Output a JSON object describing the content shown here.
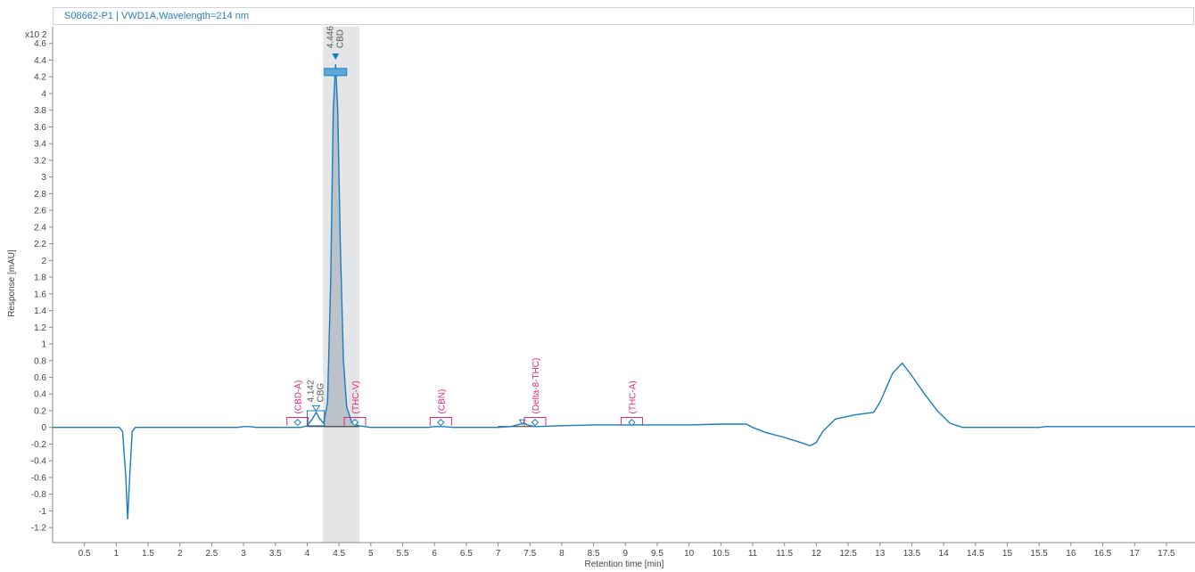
{
  "header": {
    "title": "S08662-P1 | VWD1A,Wavelength=214 nm"
  },
  "chart_data": {
    "type": "line",
    "title": "S08662-P1 | VWD1A,Wavelength=214 nm",
    "xlabel": "Retention time [min]",
    "ylabel": "Response [mAU]",
    "y_multiplier": "x10 2",
    "xlim": [
      0.0,
      17.95
    ],
    "ylim": [
      -1.38,
      4.8
    ],
    "x_ticks": [
      "0.5",
      "1",
      "1.5",
      "2",
      "2.5",
      "3",
      "3.5",
      "4",
      "4.5",
      "5",
      "5.5",
      "6",
      "6.5",
      "7",
      "7.5",
      "8",
      "8.5",
      "9",
      "9.5",
      "10",
      "10.5",
      "11",
      "11.5",
      "12",
      "12.5",
      "13",
      "13.5",
      "14",
      "14.5",
      "15",
      "15.5",
      "16",
      "16.5",
      "17",
      "17.5"
    ],
    "y_ticks": [
      "-1.2",
      "-1",
      "-0.8",
      "-0.6",
      "-0.4",
      "-0.2",
      "0",
      "0.2",
      "0.4",
      "0.6",
      "0.8",
      "1",
      "1.2",
      "1.4",
      "1.6",
      "1.8",
      "2",
      "2.2",
      "2.4",
      "2.6",
      "2.8",
      "3",
      "3.2",
      "3.4",
      "3.6",
      "3.8",
      "4",
      "4.2",
      "4.4",
      "4.6"
    ],
    "series": [
      {
        "color": "#1a7cc0",
        "points": [
          [
            0,
            0
          ],
          [
            1.05,
            0
          ],
          [
            1.1,
            -0.05
          ],
          [
            1.15,
            -0.6
          ],
          [
            1.18,
            -1.1
          ],
          [
            1.21,
            -0.6
          ],
          [
            1.25,
            -0.05
          ],
          [
            1.3,
            0
          ],
          [
            2.9,
            0
          ],
          [
            3.0,
            0.01
          ],
          [
            3.1,
            0.01
          ],
          [
            3.2,
            0
          ],
          [
            3.9,
            0
          ],
          [
            4.0,
            0.02
          ],
          [
            4.08,
            0.1
          ],
          [
            4.14,
            0.18
          ],
          [
            4.2,
            0.1
          ],
          [
            4.26,
            0.05
          ],
          [
            4.32,
            0.3
          ],
          [
            4.37,
            1.8
          ],
          [
            4.41,
            3.8
          ],
          [
            4.446,
            4.35
          ],
          [
            4.48,
            3.8
          ],
          [
            4.52,
            2.2
          ],
          [
            4.57,
            0.8
          ],
          [
            4.62,
            0.25
          ],
          [
            4.7,
            0.06
          ],
          [
            4.8,
            0.02
          ],
          [
            5.0,
            0
          ],
          [
            5.9,
            0
          ],
          [
            6.0,
            0.01
          ],
          [
            6.15,
            0.01
          ],
          [
            6.3,
            0
          ],
          [
            7.0,
            0
          ],
          [
            7.2,
            0.01
          ],
          [
            7.3,
            0.03
          ],
          [
            7.4,
            0.05
          ],
          [
            7.5,
            0.02
          ],
          [
            7.6,
            0.01
          ],
          [
            8.0,
            0.02
          ],
          [
            8.5,
            0.03
          ],
          [
            9.0,
            0.03
          ],
          [
            10.0,
            0.03
          ],
          [
            10.5,
            0.04
          ],
          [
            10.9,
            0.04
          ],
          [
            11.0,
            0.0
          ],
          [
            11.2,
            -0.06
          ],
          [
            11.5,
            -0.12
          ],
          [
            11.75,
            -0.18
          ],
          [
            11.9,
            -0.22
          ],
          [
            12.0,
            -0.18
          ],
          [
            12.1,
            -0.05
          ],
          [
            12.3,
            0.1
          ],
          [
            12.6,
            0.15
          ],
          [
            12.9,
            0.18
          ],
          [
            13.0,
            0.3
          ],
          [
            13.2,
            0.65
          ],
          [
            13.35,
            0.77
          ],
          [
            13.5,
            0.62
          ],
          [
            13.7,
            0.4
          ],
          [
            13.9,
            0.2
          ],
          [
            14.1,
            0.05
          ],
          [
            14.3,
            0.0
          ],
          [
            15.5,
            0.0
          ],
          [
            15.6,
            0.01
          ],
          [
            16.5,
            0.01
          ],
          [
            17.95,
            0.01
          ]
        ]
      }
    ],
    "peaks": [
      {
        "rt": "4.446",
        "name": "CBD",
        "x": 4.446,
        "y": 4.35
      },
      {
        "rt": "4.142",
        "name": "CBG",
        "x": 4.14,
        "y": 0.18
      }
    ],
    "expected_compounds": [
      {
        "name": "(CBD-A)",
        "x": 3.85
      },
      {
        "name": "(THC-V)",
        "x": 4.75
      },
      {
        "name": "(CBN)",
        "x": 6.1
      },
      {
        "name": "(Delta-8-THC)",
        "x": 7.58
      },
      {
        "name": "(THC-A)",
        "x": 9.1
      }
    ],
    "highlight_region": [
      4.25,
      4.82
    ],
    "grid": false,
    "colors": {
      "trace": "#1a7cc0",
      "compound": "#e0287a",
      "highlight": "#d9dcdf"
    }
  }
}
